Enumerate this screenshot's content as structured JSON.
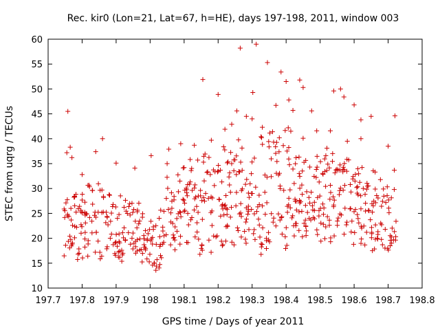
{
  "chart_data": {
    "type": "scatter",
    "title": "Rec. kir0 (Lon=21, Lat=67, h=HE), days 197-198, 2011, window 003",
    "xlabel": "GPS time / Days of year 2011",
    "ylabel": "STEC from uqrg / TECUs",
    "xlim": [
      197.7,
      198.8
    ],
    "ylim": [
      10,
      60
    ],
    "xticks": [
      197.7,
      197.8,
      197.9,
      198,
      198.1,
      198.2,
      198.3,
      198.4,
      198.5,
      198.6,
      198.7,
      198.8
    ],
    "xtick_labels": [
      "197.7",
      "197.8",
      "197.9",
      "198",
      "198.1",
      "198.2",
      "198.3",
      "198.4",
      "198.5",
      "198.6",
      "198.7",
      "198.8"
    ],
    "yticks": [
      10,
      15,
      20,
      25,
      30,
      35,
      40,
      45,
      50,
      55,
      60
    ],
    "ytick_labels": [
      "10",
      "15",
      "20",
      "25",
      "30",
      "35",
      "40",
      "45",
      "50",
      "55",
      "60"
    ],
    "marker": "plus",
    "marker_color": "#cc0000",
    "series": [
      {
        "name": "STEC",
        "x": [
          197.758,
          197.765,
          197.84,
          197.955,
          198.003,
          198.055,
          198.09,
          198.13,
          198.155,
          198.2,
          198.255,
          198.265,
          198.283,
          198.302,
          198.312,
          198.345,
          198.37,
          198.385,
          198.4,
          198.408,
          198.42,
          198.44,
          198.45,
          198.475,
          198.49,
          198.53,
          198.54,
          198.56,
          198.57,
          198.6,
          198.62,
          198.65,
          198.72,
          197.755,
          197.77,
          197.8,
          197.86,
          197.9,
          198.05,
          198.1,
          198.14,
          198.18,
          198.22,
          198.24,
          198.3,
          198.33,
          198.36,
          198.38,
          198.45,
          198.52,
          198.58,
          198.62,
          198.7
        ],
        "y": [
          45.5,
          38.3,
          37.4,
          34.1,
          36.6,
          37.9,
          39.0,
          38.7,
          51.9,
          48.9,
          45.6,
          58.2,
          44.5,
          49.3,
          59.0,
          55.3,
          46.7,
          53.4,
          51.5,
          47.8,
          45.7,
          51.8,
          50.3,
          45.6,
          41.6,
          41.6,
          49.6,
          50.0,
          48.4,
          46.8,
          43.8,
          44.5,
          44.6,
          37.2,
          36.2,
          32.8,
          40.0,
          35.1,
          35.0,
          34.2,
          35.7,
          39.7,
          41.9,
          42.9,
          44.0,
          42.3,
          41.4,
          40.2,
          40.1,
          38.1,
          39.5,
          40.0,
          38.5
        ]
      }
    ]
  }
}
